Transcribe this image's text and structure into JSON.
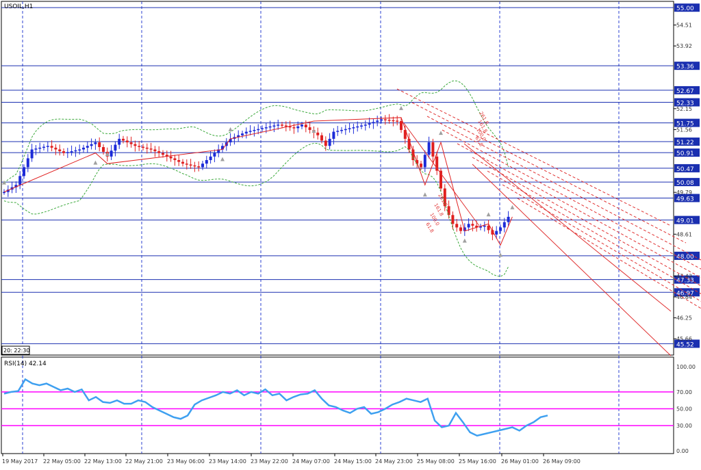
{
  "window": {
    "title": "USOIL,H1",
    "time_label": "20: 22:30"
  },
  "colors": {
    "bull": "#1c2bd8",
    "bear": "#e02020",
    "level": "#1a2fb0",
    "grid": "#2a3fd0",
    "rsi": "#3ea0f0",
    "rsi_level": "#ff00ff",
    "fib": "#e03030",
    "band": "#3aa83a",
    "zigzag": "#e02020",
    "fractal": "#a0a0a0"
  },
  "chart_data": [
    {
      "type": "candlestick",
      "title": "USOIL,H1",
      "price_axis": {
        "ylim": [
          45.2,
          55.1
        ],
        "tick_labels": [
          "54.51",
          "53.92",
          "52.15",
          "51.56",
          "49.79",
          "48.61",
          "47.43",
          "46.84",
          "46.25",
          "45.66"
        ],
        "highlighted_levels": [
          "55.00",
          "53.36",
          "52.67",
          "52.33",
          "51.75",
          "51.22",
          "50.91",
          "50.47",
          "50.08",
          "49.63",
          "49.01",
          "48.00",
          "47.33",
          "46.97",
          "45.52"
        ]
      },
      "time_axis": {
        "tick_labels": [
          "19 May 2017",
          "22 May 05:00",
          "22 May 13:00",
          "22 May 21:00",
          "23 May 06:00",
          "23 May 14:00",
          "23 May 22:00",
          "24 May 07:00",
          "24 May 15:00",
          "24 May 23:00",
          "25 May 08:00",
          "25 May 16:00",
          "26 May 01:00",
          "26 May 09:00"
        ]
      },
      "horizontal_levels": [
        55.0,
        53.36,
        52.67,
        52.33,
        51.75,
        51.22,
        50.91,
        50.47,
        50.08,
        49.63,
        49.01,
        48.0,
        47.33,
        46.97,
        45.52
      ],
      "close_path": [
        [
          1,
          49.8
        ],
        [
          4,
          50.0
        ],
        [
          8,
          51.0
        ],
        [
          12,
          51.1
        ],
        [
          16,
          50.9
        ],
        [
          20,
          51.0
        ],
        [
          24,
          51.2
        ],
        [
          27,
          50.8
        ],
        [
          30,
          51.3
        ],
        [
          34,
          51.1
        ],
        [
          38,
          51.0
        ],
        [
          42,
          50.8
        ],
        [
          46,
          50.6
        ],
        [
          50,
          50.5
        ],
        [
          54,
          50.9
        ],
        [
          58,
          51.3
        ],
        [
          62,
          51.5
        ],
        [
          66,
          51.6
        ],
        [
          70,
          51.7
        ],
        [
          74,
          51.6
        ],
        [
          76,
          51.7
        ],
        [
          80,
          51.4
        ],
        [
          82,
          51.1
        ],
        [
          84,
          51.5
        ],
        [
          88,
          51.6
        ],
        [
          92,
          51.7
        ],
        [
          96,
          51.85
        ],
        [
          100,
          51.8
        ],
        [
          102,
          51.3
        ],
        [
          104,
          50.7
        ],
        [
          106,
          50.5
        ],
        [
          108,
          51.2
        ],
        [
          110,
          50.4
        ],
        [
          112,
          49.4
        ],
        [
          114,
          48.9
        ],
        [
          116,
          48.7
        ],
        [
          118,
          48.9
        ],
        [
          120,
          48.8
        ],
        [
          122,
          48.85
        ],
        [
          124,
          48.6
        ],
        [
          126,
          48.8
        ],
        [
          128,
          49.1
        ]
      ],
      "bollinger_band": {
        "period": 20
      }
    },
    {
      "type": "line",
      "title": "RSI(14) 42.14",
      "ylim": [
        0,
        100
      ],
      "tick_labels": [
        "100.00",
        "70.00",
        "50.00",
        "30.00",
        "0.00"
      ],
      "levels": [
        70,
        50,
        30
      ],
      "series": [
        {
          "values": [
            68,
            70,
            71,
            85,
            80,
            78,
            80,
            76,
            72,
            74,
            70,
            73,
            60,
            64,
            58,
            57,
            60,
            56,
            56,
            60,
            58,
            52,
            48,
            44,
            40,
            38,
            42,
            55,
            60,
            63,
            66,
            70,
            68,
            72,
            66,
            70,
            68,
            73,
            66,
            68,
            60,
            64,
            67,
            68,
            72,
            62,
            54,
            52,
            48,
            45,
            50,
            52,
            44,
            46,
            50,
            55,
            58,
            62,
            60,
            58,
            62,
            36,
            28,
            30,
            45,
            34,
            22,
            18,
            20,
            22,
            24,
            26,
            28,
            24,
            30,
            34,
            40,
            42
          ]
        }
      ]
    }
  ],
  "fibonacci_labels": [
    "261.8",
    "161.8",
    "100.0",
    "61.8"
  ]
}
